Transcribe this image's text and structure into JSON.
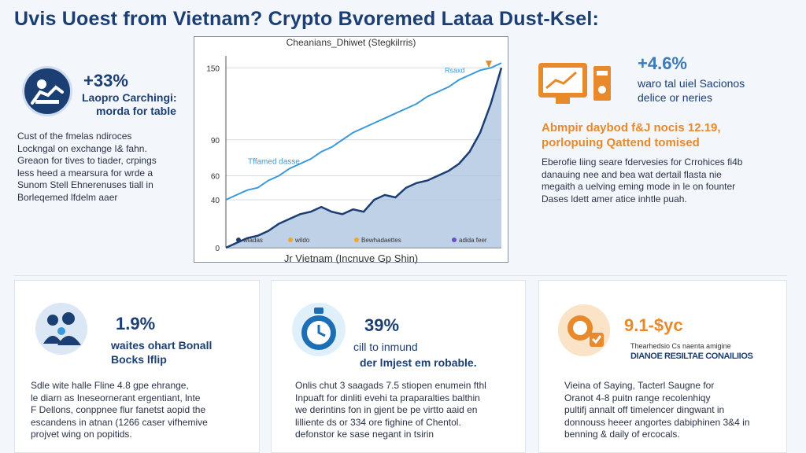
{
  "title": "Uvis Uoest from Vietnam? Crypto Bvoremed Lataa Dust-Ksel:",
  "left_panel": {
    "stat": "+33%",
    "stat_label_1": "Laopro Carchingi:",
    "stat_label_2": "morda for table",
    "para": [
      "Cust of the fmelas ndiroces",
      "Lockngal on exchange I& fahn.",
      "Greaon for tives to tiader, crpings",
      "less heed a mearsura for wrde a",
      "Sunom Stell Ehnerenuses tiall in",
      "Borleqemed lfdelm aaer"
    ]
  },
  "right_panel": {
    "stat": "+4.6%",
    "stat_label_1": "waro tal uiel Sacionos",
    "stat_label_2": "delice or neries",
    "orange_1": "Abmpir daybod f&J nocis 12.19,",
    "orange_2": "porlopuing Qattend tomised",
    "para": [
      "Eberofie liing seare fdervesies for Crrohices fi4b",
      "danauing nee and bea wat dertail flasta nie",
      "megaith a uelving eming mode in le on founter",
      "Dases ldett amer atice inhtle puah."
    ]
  },
  "chart_data": {
    "type": "area",
    "title": "Cheanians_Dhiwet (Stegkilrris)",
    "xlabel": "Jr Vietnam (Incnuve Gp Shin)",
    "ylabel": "",
    "yticks": [
      0,
      40,
      60,
      90,
      150
    ],
    "ylim": [
      0,
      160
    ],
    "series": [
      {
        "name": "Tffamed dasse",
        "color": "#3a9ad9",
        "values": [
          40,
          44,
          48,
          50,
          56,
          60,
          66,
          70,
          74,
          80,
          84,
          90,
          96,
          100,
          104,
          108,
          112,
          116,
          120,
          126,
          130,
          134,
          140,
          144,
          148,
          150,
          154
        ]
      },
      {
        "name": "Rsaxd",
        "color": "#1c3f73",
        "values": [
          0,
          4,
          8,
          10,
          14,
          20,
          24,
          28,
          30,
          34,
          30,
          28,
          32,
          30,
          40,
          44,
          42,
          50,
          54,
          56,
          60,
          64,
          70,
          80,
          96,
          120,
          150
        ]
      }
    ],
    "legend": [
      "wladas",
      "wildo",
      "Bewhadaettes",
      "adida feer"
    ],
    "legend_colors": [
      "#1c3f73",
      "#f5a623",
      "#f5a623",
      "#6a4fc7"
    ]
  },
  "cards": [
    {
      "stat": "1.9%",
      "label_1": "waites ohart Bonall",
      "label_2": "Bocks lflip",
      "para": [
        "Sdle wite halle Fline 4.8 gpe ehrange,",
        "le diarn as Ineseornerant ergentiant, lnte",
        "F Dellons, conppnee flur fanetst aopid the",
        "escandens in atnan (1266 caser vifhemive",
        "projvet wing on popitids."
      ]
    },
    {
      "stat": "39%",
      "label_1": "cill to inmund",
      "label_2": "der lmjest em robable.",
      "para": [
        "Onlis chut 3 saagads 7.5 stiopen enumein fthl",
        "Inpuaft for dinliti evehi ta praparalties balthin",
        "we derintins fon in gjent be pe virtto aaid en",
        "lilliente ds or 334 ore fighine of Chentol.",
        "defonstor ke sase negant in tsirin"
      ]
    },
    {
      "stat": "9.1-$yc",
      "label_1": "Thearhedsio Cs naenta amigine",
      "label_2": "DIANOE RESILTAE CONAILIIOS",
      "para": [
        "Vieina of Saying, Tacterl Saugne for",
        "Oranot 4-8 puitn range recolenhiqy",
        "pultifj annalt off timelencer dingwant in",
        "donnouss heeer angortes dabiphinen 3&4 in",
        "benning & daily of ercocals."
      ]
    }
  ]
}
